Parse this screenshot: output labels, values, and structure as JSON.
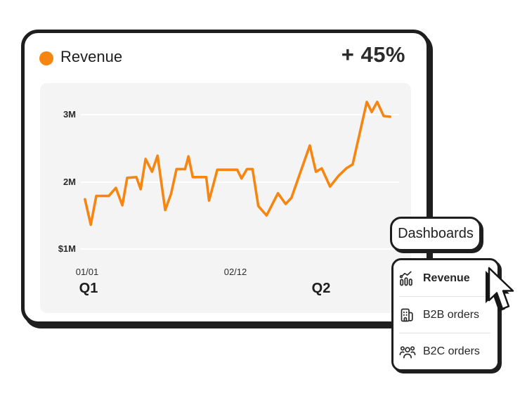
{
  "header": {
    "title": "Revenue",
    "delta": "+ 45%",
    "accent_color": "#F68511"
  },
  "chart_data": {
    "type": "line",
    "title": "Revenue",
    "xlabel": "",
    "ylabel": "",
    "y_ticks": [
      "3M",
      "2M",
      "$1M"
    ],
    "y_tick_values_m": [
      3,
      2,
      1
    ],
    "x_ticks": [
      "01/01",
      "02/12"
    ],
    "period_labels": [
      "Q1",
      "Q2"
    ],
    "ylim_m": [
      1.0,
      3.4
    ],
    "grid": true,
    "legend": "none",
    "line_color": "#F68511",
    "series": [
      {
        "name": "Revenue",
        "points": [
          [
            0.002,
            1.74
          ],
          [
            0.021,
            1.36
          ],
          [
            0.039,
            1.79
          ],
          [
            0.08,
            1.79
          ],
          [
            0.103,
            1.91
          ],
          [
            0.124,
            1.65
          ],
          [
            0.14,
            2.06
          ],
          [
            0.17,
            2.07
          ],
          [
            0.184,
            1.89
          ],
          [
            0.2,
            2.34
          ],
          [
            0.221,
            2.15
          ],
          [
            0.239,
            2.39
          ],
          [
            0.264,
            1.58
          ],
          [
            0.283,
            1.82
          ],
          [
            0.301,
            2.19
          ],
          [
            0.329,
            2.19
          ],
          [
            0.34,
            2.38
          ],
          [
            0.354,
            2.07
          ],
          [
            0.398,
            2.07
          ],
          [
            0.407,
            1.72
          ],
          [
            0.423,
            1.99
          ],
          [
            0.434,
            2.18
          ],
          [
            0.499,
            2.18
          ],
          [
            0.513,
            2.05
          ],
          [
            0.531,
            2.19
          ],
          [
            0.549,
            2.19
          ],
          [
            0.568,
            1.64
          ],
          [
            0.595,
            1.5
          ],
          [
            0.632,
            1.83
          ],
          [
            0.657,
            1.67
          ],
          [
            0.676,
            1.76
          ],
          [
            0.736,
            2.54
          ],
          [
            0.756,
            2.15
          ],
          [
            0.775,
            2.2
          ],
          [
            0.802,
            1.93
          ],
          [
            0.83,
            2.09
          ],
          [
            0.855,
            2.2
          ],
          [
            0.876,
            2.26
          ],
          [
            0.922,
            3.19
          ],
          [
            0.938,
            3.04
          ],
          [
            0.956,
            3.19
          ],
          [
            0.977,
            2.98
          ],
          [
            0.998,
            2.97
          ]
        ]
      }
    ]
  },
  "dashboards_button": {
    "label": "Dashboards"
  },
  "dropdown": {
    "items": [
      {
        "label": "Revenue",
        "icon": "trend-chart-icon",
        "active": true
      },
      {
        "label": "B2B orders",
        "icon": "building-icon",
        "active": false
      },
      {
        "label": "B2C orders",
        "icon": "people-icon",
        "active": false
      }
    ]
  },
  "cursor": {
    "type": "arrow-pointer"
  }
}
